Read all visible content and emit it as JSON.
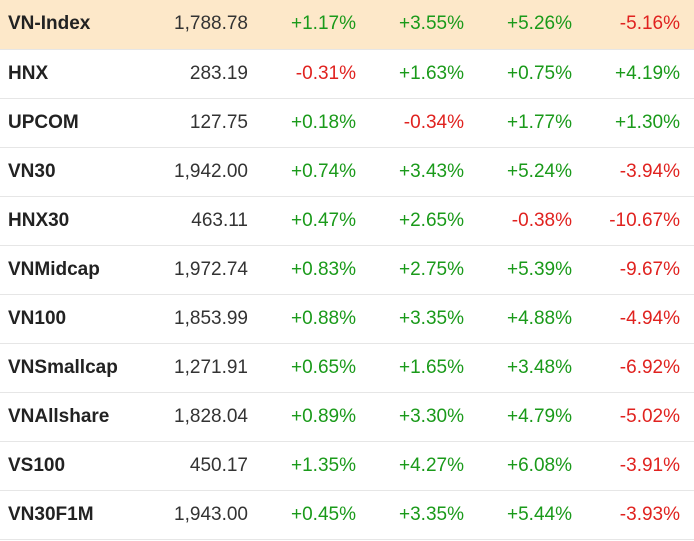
{
  "colors": {
    "up": "#1a9a1a",
    "down": "#e0221f",
    "highlight_row": "#fde8c9"
  },
  "rows": [
    {
      "name": "VN-Index",
      "value": "1,788.78",
      "changes": [
        "+1.17%",
        "+3.55%",
        "+5.26%",
        "-5.16%"
      ],
      "highlighted": true
    },
    {
      "name": "HNX",
      "value": "283.19",
      "changes": [
        "-0.31%",
        "+1.63%",
        "+0.75%",
        "+4.19%"
      ]
    },
    {
      "name": "UPCOM",
      "value": "127.75",
      "changes": [
        "+0.18%",
        "-0.34%",
        "+1.77%",
        "+1.30%"
      ]
    },
    {
      "name": "VN30",
      "value": "1,942.00",
      "changes": [
        "+0.74%",
        "+3.43%",
        "+5.24%",
        "-3.94%"
      ]
    },
    {
      "name": "HNX30",
      "value": "463.11",
      "changes": [
        "+0.47%",
        "+2.65%",
        "-0.38%",
        "-10.67%"
      ]
    },
    {
      "name": "VNMidcap",
      "value": "1,972.74",
      "changes": [
        "+0.83%",
        "+2.75%",
        "+5.39%",
        "-9.67%"
      ]
    },
    {
      "name": "VN100",
      "value": "1,853.99",
      "changes": [
        "+0.88%",
        "+3.35%",
        "+4.88%",
        "-4.94%"
      ]
    },
    {
      "name": "VNSmallcap",
      "value": "1,271.91",
      "changes": [
        "+0.65%",
        "+1.65%",
        "+3.48%",
        "-6.92%"
      ]
    },
    {
      "name": "VNAllshare",
      "value": "1,828.04",
      "changes": [
        "+0.89%",
        "+3.30%",
        "+4.79%",
        "-5.02%"
      ]
    },
    {
      "name": "VS100",
      "value": "450.17",
      "changes": [
        "+1.35%",
        "+4.27%",
        "+6.08%",
        "-3.91%"
      ]
    },
    {
      "name": "VN30F1M",
      "value": "1,943.00",
      "changes": [
        "+0.45%",
        "+3.35%",
        "+5.44%",
        "-3.93%"
      ]
    }
  ]
}
